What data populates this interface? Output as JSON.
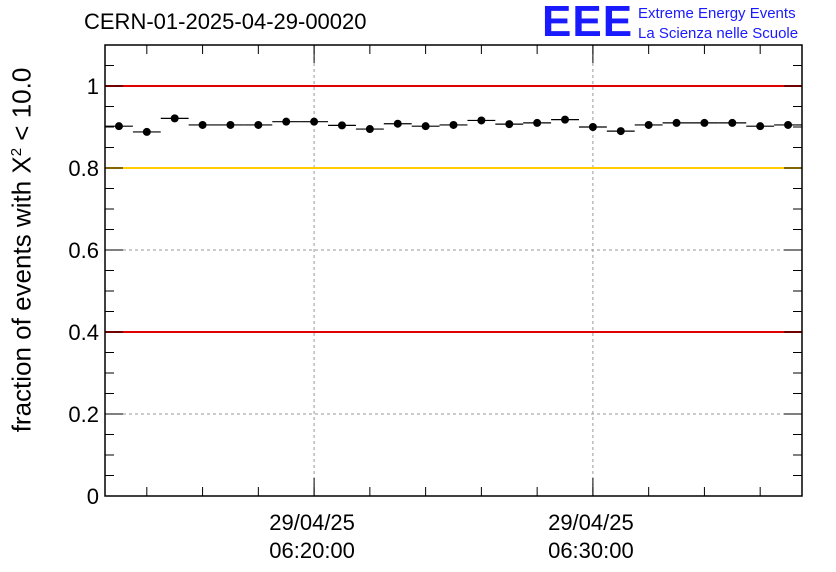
{
  "header": {
    "run_title": "CERN-01-2025-04-29-00020",
    "logo_text": "EEE",
    "logo_line1": "Extreme Energy Events",
    "logo_line2": "La Scienza nelle Scuole"
  },
  "colors": {
    "red": "#e00000",
    "yellow": "#ffcc00",
    "logo": "#1a1aff",
    "grid": "#999999"
  },
  "chart_data": {
    "type": "scatter",
    "title": "CERN-01-2025-04-29-00020",
    "ylabel_prefix": "fraction of events with ",
    "ylabel_symbol": "Χ",
    "ylabel_exp": "2",
    "ylabel_suffix": " < 10.0",
    "xlabel": "",
    "ylim": [
      0,
      1.1
    ],
    "yticks": [
      0,
      0.2,
      0.4,
      0.6,
      0.8,
      1
    ],
    "ytick_labels": [
      "0",
      "0.2",
      "0.4",
      "0.6",
      "0.8",
      "1"
    ],
    "xlim": [
      0,
      25
    ],
    "xtick_positions": [
      7.5,
      17.5
    ],
    "xtick_labels": [
      [
        "29/04/25",
        "06:20:00"
      ],
      [
        "29/04/25",
        "06:30:00"
      ]
    ],
    "reference_lines": [
      {
        "y": 1.0,
        "color": "red"
      },
      {
        "y": 0.8,
        "color": "yellow"
      },
      {
        "y": 0.4,
        "color": "red"
      }
    ],
    "x": [
      0.5,
      1.5,
      2.5,
      3.5,
      4.5,
      5.5,
      6.5,
      7.5,
      8.5,
      9.5,
      10.5,
      11.5,
      12.5,
      13.5,
      14.5,
      15.5,
      16.5,
      17.5,
      18.5,
      19.5,
      20.5,
      21.5,
      22.5,
      23.5,
      24.5
    ],
    "values": [
      0.902,
      0.888,
      0.921,
      0.905,
      0.905,
      0.905,
      0.913,
      0.913,
      0.904,
      0.895,
      0.908,
      0.902,
      0.905,
      0.916,
      0.907,
      0.91,
      0.918,
      0.9,
      0.89,
      0.905,
      0.91,
      0.91,
      0.91,
      0.902,
      0.905
    ]
  }
}
